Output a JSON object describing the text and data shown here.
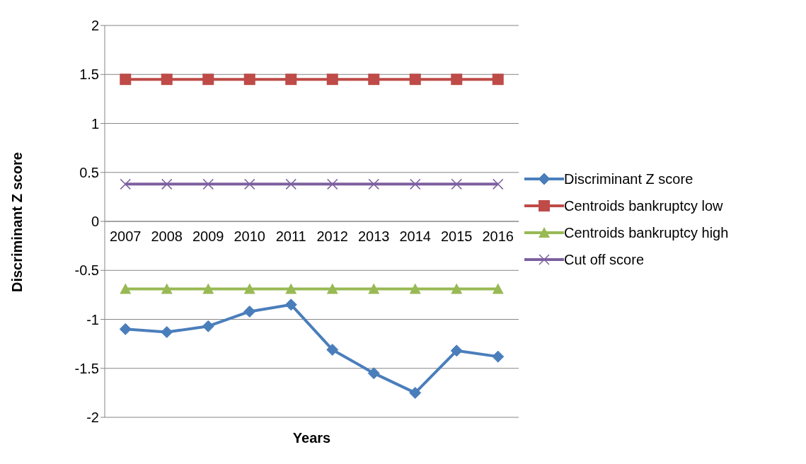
{
  "chart_data": {
    "type": "line",
    "xlabel": "Years",
    "ylabel": "Discriminant Z score",
    "categories": [
      "2007",
      "2008",
      "2009",
      "2010",
      "2011",
      "2012",
      "2013",
      "2014",
      "2015",
      "2016"
    ],
    "series": [
      {
        "name": "Discriminant Z score",
        "color": "#4a7ebb",
        "marker": "diamond",
        "values": [
          -1.1,
          -1.13,
          -1.07,
          -0.92,
          -0.85,
          -1.31,
          -1.55,
          -1.75,
          -1.32,
          -1.38
        ]
      },
      {
        "name": "Centroids bankruptcy low",
        "color": "#be4b48",
        "marker": "square",
        "values": [
          1.45,
          1.45,
          1.45,
          1.45,
          1.45,
          1.45,
          1.45,
          1.45,
          1.45,
          1.45
        ]
      },
      {
        "name": "Centroids bankruptcy high",
        "color": "#98b954",
        "marker": "triangle",
        "values": [
          -0.69,
          -0.69,
          -0.69,
          -0.69,
          -0.69,
          -0.69,
          -0.69,
          -0.69,
          -0.69,
          -0.69
        ]
      },
      {
        "name": "Cut off score",
        "color": "#7d60a0",
        "marker": "cross",
        "values": [
          0.38,
          0.38,
          0.38,
          0.38,
          0.38,
          0.38,
          0.38,
          0.38,
          0.38,
          0.38
        ]
      }
    ],
    "ylim": [
      -2,
      2
    ],
    "yticks": [
      -2,
      -1.5,
      -1,
      -0.5,
      0,
      0.5,
      1,
      1.5,
      2
    ],
    "grid": "y",
    "legend": "right",
    "line_style": "solid"
  }
}
